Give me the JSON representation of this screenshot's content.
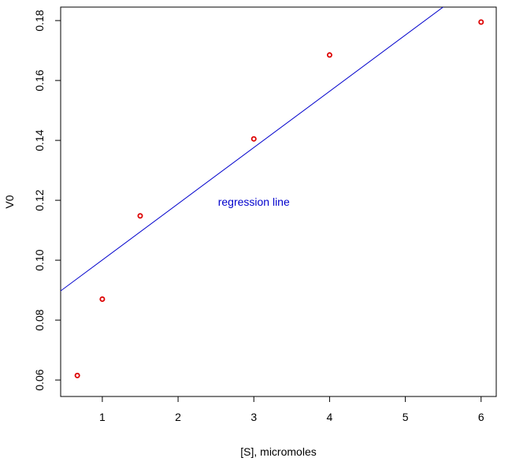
{
  "chart_data": {
    "type": "scatter",
    "xlabel": "[S], micromoles",
    "ylabel": "V0",
    "xlim": [
      0.45,
      6.2
    ],
    "ylim": [
      0.0545,
      0.1845
    ],
    "x_ticks": [
      1,
      2,
      3,
      4,
      5,
      6
    ],
    "y_ticks": [
      0.06,
      0.08,
      0.1,
      0.12,
      0.14,
      0.16,
      0.18
    ],
    "y_tick_labels": [
      "0.06",
      "0.08",
      "0.10",
      "0.12",
      "0.14",
      "0.16",
      "0.18"
    ],
    "grid": false,
    "series": [
      {
        "marker": "open-circle",
        "color": "#dd0000",
        "x": [
          0.67,
          1.0,
          1.5,
          3.0,
          4.0,
          6.0
        ],
        "y": [
          0.0615,
          0.087,
          0.1148,
          0.1405,
          0.1685,
          0.1795
        ]
      }
    ],
    "regression_line": {
      "color": "#0000cc",
      "intercept": 0.0813,
      "slope": 0.01877
    },
    "annotations": [
      {
        "text": "regression line",
        "x": 3.0,
        "y": 0.1195,
        "color": "#0000cc"
      }
    ]
  }
}
